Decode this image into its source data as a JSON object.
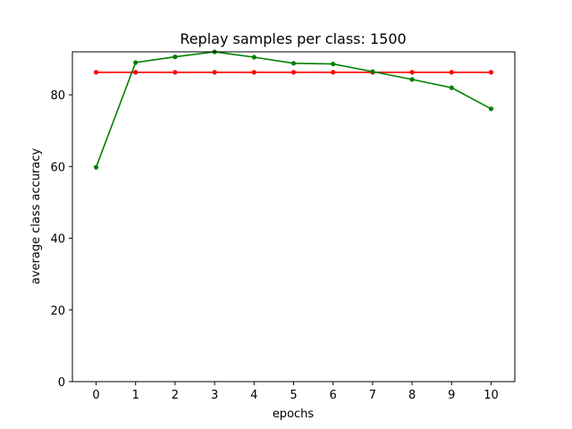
{
  "chart_data": {
    "type": "line",
    "title": "Replay samples per class: 1500",
    "xlabel": "epochs",
    "ylabel": "average class accuracy",
    "x": [
      0,
      1,
      2,
      3,
      4,
      5,
      6,
      7,
      8,
      9,
      10
    ],
    "xticks": [
      0,
      1,
      2,
      3,
      4,
      5,
      6,
      7,
      8,
      9,
      10
    ],
    "yticks": [
      0,
      20,
      40,
      60,
      80
    ],
    "xlim": [
      -0.6,
      10.6
    ],
    "ylim": [
      0,
      92
    ],
    "grid": false,
    "series": [
      {
        "color": "#ff0000",
        "values": [
          86.3,
          86.3,
          86.3,
          86.3,
          86.3,
          86.3,
          86.3,
          86.3,
          86.3,
          86.3,
          86.3
        ]
      },
      {
        "color": "#008000",
        "values": [
          59.8,
          89.0,
          90.6,
          92.0,
          90.5,
          88.8,
          88.6,
          86.5,
          84.3,
          82.0,
          76.1
        ]
      }
    ]
  }
}
